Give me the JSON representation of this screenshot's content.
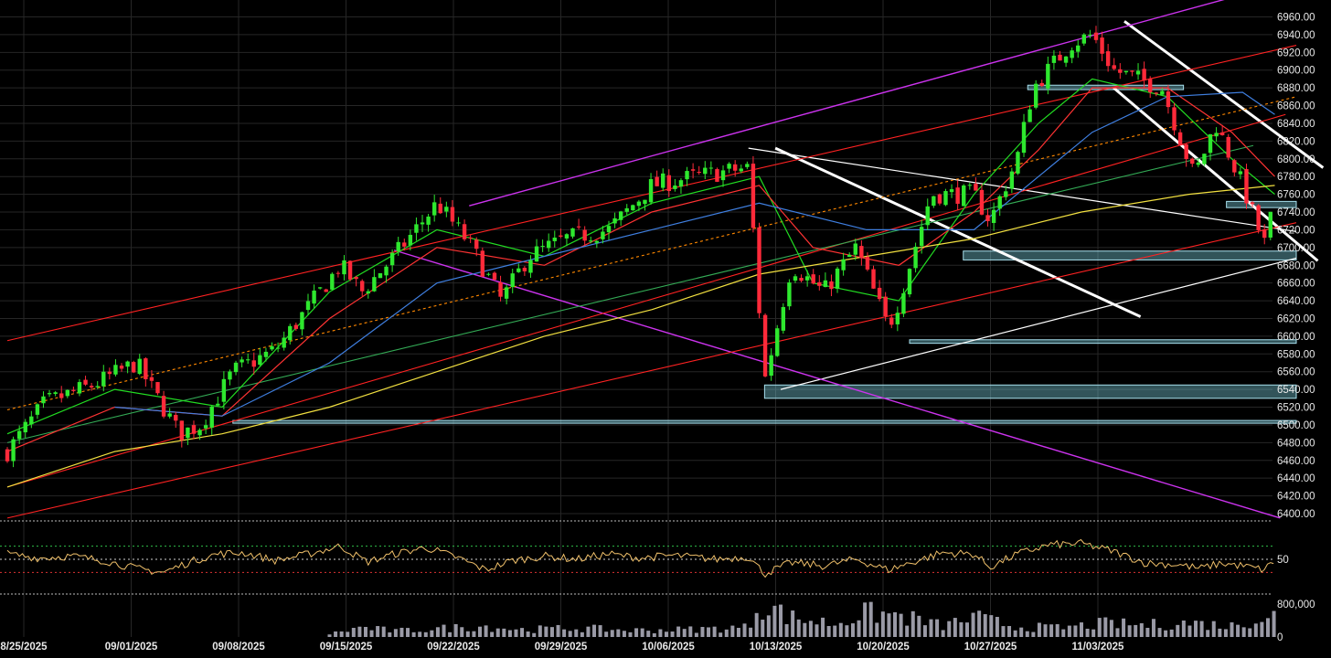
{
  "chart_data": [
    {
      "type": "candlestick",
      "panel": "price",
      "title": "",
      "xlabel": "",
      "ylabel": "",
      "ylim": [
        6390,
        6980
      ],
      "y_ticks": [
        "6400.00",
        "6420.00",
        "6440.00",
        "6460.00",
        "6480.00",
        "6500.00",
        "6520.00",
        "6540.00",
        "6560.00",
        "6580.00",
        "6600.00",
        "6620.00",
        "6640.00",
        "6660.00",
        "6680.00",
        "6700.00",
        "6720.00",
        "6740.00",
        "6760.00",
        "6780.00",
        "6800.00",
        "6820.00",
        "6840.00",
        "6860.00",
        "6880.00",
        "6900.00",
        "6920.00",
        "6940.00",
        "6960.00"
      ],
      "x_ticks": [
        "8/25/2025",
        "09/01/2025",
        "09/08/2025",
        "09/15/2025",
        "09/22/2025",
        "09/29/2025",
        "10/06/2025",
        "10/13/2025",
        "10/20/2025",
        "10/27/2025",
        "11/03/2025"
      ],
      "grid": true,
      "colors": {
        "up": "#2ee82e",
        "down": "#ff2a3a",
        "background": "#000000",
        "grid": "#262626"
      },
      "close_path": [
        {
          "x": 0,
          "y": 6470
        },
        {
          "x": 0.35,
          "y": 6525
        },
        {
          "x": 0.8,
          "y": 6545
        },
        {
          "x": 1.2,
          "y": 6570
        },
        {
          "x": 1.45,
          "y": 6520
        },
        {
          "x": 1.6,
          "y": 6490
        },
        {
          "x": 1.8,
          "y": 6500
        },
        {
          "x": 2.1,
          "y": 6560
        },
        {
          "x": 2.5,
          "y": 6585
        },
        {
          "x": 3.1,
          "y": 6680
        },
        {
          "x": 3.3,
          "y": 6650
        },
        {
          "x": 3.6,
          "y": 6690
        },
        {
          "x": 4.0,
          "y": 6750
        },
        {
          "x": 4.3,
          "y": 6705
        },
        {
          "x": 4.6,
          "y": 6640
        },
        {
          "x": 4.85,
          "y": 6690
        },
        {
          "x": 5.2,
          "y": 6710
        },
        {
          "x": 5.6,
          "y": 6720
        },
        {
          "x": 6.0,
          "y": 6770
        },
        {
          "x": 6.4,
          "y": 6780
        },
        {
          "x": 6.9,
          "y": 6790
        },
        {
          "x": 7.05,
          "y": 6550
        },
        {
          "x": 7.3,
          "y": 6680
        },
        {
          "x": 7.6,
          "y": 6650
        },
        {
          "x": 7.9,
          "y": 6700
        },
        {
          "x": 8.2,
          "y": 6610
        },
        {
          "x": 8.3,
          "y": 6640
        },
        {
          "x": 8.6,
          "y": 6760
        },
        {
          "x": 9.0,
          "y": 6760
        },
        {
          "x": 9.15,
          "y": 6730
        },
        {
          "x": 9.4,
          "y": 6800
        },
        {
          "x": 9.55,
          "y": 6880
        },
        {
          "x": 9.9,
          "y": 6930
        },
        {
          "x": 10.1,
          "y": 6940
        },
        {
          "x": 10.3,
          "y": 6900
        },
        {
          "x": 10.75,
          "y": 6880
        },
        {
          "x": 11.05,
          "y": 6780
        },
        {
          "x": 11.25,
          "y": 6840
        },
        {
          "x": 11.5,
          "y": 6770
        },
        {
          "x": 11.65,
          "y": 6720
        },
        {
          "x": 11.72,
          "y": 6700
        },
        {
          "x": 11.8,
          "y": 6765
        }
      ],
      "moving_averages": [
        {
          "color": "#22dd22",
          "values": [
            {
              "x": 0,
              "y": 6490
            },
            {
              "x": 1,
              "y": 6540
            },
            {
              "x": 2,
              "y": 6520
            },
            {
              "x": 3,
              "y": 6650
            },
            {
              "x": 4,
              "y": 6720
            },
            {
              "x": 5,
              "y": 6690
            },
            {
              "x": 6,
              "y": 6750
            },
            {
              "x": 7,
              "y": 6780
            },
            {
              "x": 7.5,
              "y": 6660
            },
            {
              "x": 8.3,
              "y": 6640
            },
            {
              "x": 9,
              "y": 6760
            },
            {
              "x": 9.6,
              "y": 6840
            },
            {
              "x": 10.1,
              "y": 6890
            },
            {
              "x": 10.8,
              "y": 6870
            },
            {
              "x": 11.4,
              "y": 6800
            },
            {
              "x": 11.8,
              "y": 6760
            }
          ]
        },
        {
          "color": "#ff3333",
          "values": [
            {
              "x": 0,
              "y": 6470
            },
            {
              "x": 1,
              "y": 6520
            },
            {
              "x": 2,
              "y": 6510
            },
            {
              "x": 3,
              "y": 6620
            },
            {
              "x": 4,
              "y": 6700
            },
            {
              "x": 5,
              "y": 6680
            },
            {
              "x": 6,
              "y": 6740
            },
            {
              "x": 7,
              "y": 6770
            },
            {
              "x": 7.5,
              "y": 6700
            },
            {
              "x": 8.3,
              "y": 6680
            },
            {
              "x": 9,
              "y": 6740
            },
            {
              "x": 9.6,
              "y": 6810
            },
            {
              "x": 10.1,
              "y": 6880
            },
            {
              "x": 10.8,
              "y": 6880
            },
            {
              "x": 11.4,
              "y": 6830
            },
            {
              "x": 11.8,
              "y": 6780
            }
          ]
        },
        {
          "color": "#3f7fe0",
          "values": [
            {
              "x": 1,
              "y": 6520
            },
            {
              "x": 2,
              "y": 6510
            },
            {
              "x": 3,
              "y": 6570
            },
            {
              "x": 4,
              "y": 6660
            },
            {
              "x": 5,
              "y": 6690
            },
            {
              "x": 6,
              "y": 6720
            },
            {
              "x": 7,
              "y": 6750
            },
            {
              "x": 8,
              "y": 6720
            },
            {
              "x": 9,
              "y": 6720
            },
            {
              "x": 9.6,
              "y": 6780
            },
            {
              "x": 10.1,
              "y": 6830
            },
            {
              "x": 10.8,
              "y": 6870
            },
            {
              "x": 11.5,
              "y": 6875
            },
            {
              "x": 11.8,
              "y": 6850
            }
          ]
        },
        {
          "color": "#f2e040",
          "values": [
            {
              "x": 0,
              "y": 6430
            },
            {
              "x": 1,
              "y": 6470
            },
            {
              "x": 2,
              "y": 6490
            },
            {
              "x": 3,
              "y": 6520
            },
            {
              "x": 4,
              "y": 6560
            },
            {
              "x": 5,
              "y": 6600
            },
            {
              "x": 6,
              "y": 6630
            },
            {
              "x": 7,
              "y": 6670
            },
            {
              "x": 8,
              "y": 6690
            },
            {
              "x": 9,
              "y": 6710
            },
            {
              "x": 10,
              "y": 6740
            },
            {
              "x": 11,
              "y": 6760
            },
            {
              "x": 11.8,
              "y": 6770
            }
          ]
        }
      ],
      "zones": [
        {
          "x1": 7.05,
          "x2": 12.0,
          "y1": 6530,
          "y2": 6545
        },
        {
          "x1": 2.1,
          "x2": 12.0,
          "y1": 6502,
          "y2": 6505
        },
        {
          "x1": 8.4,
          "x2": 12.0,
          "y1": 6592,
          "y2": 6596
        },
        {
          "x1": 8.9,
          "x2": 12.0,
          "y1": 6686,
          "y2": 6696
        },
        {
          "x1": 11.35,
          "x2": 12.0,
          "y1": 6745,
          "y2": 6752
        },
        {
          "x1": 9.5,
          "x2": 10.95,
          "y1": 6878,
          "y2": 6883
        }
      ],
      "trendlines": [
        {
          "color": "#ffffff",
          "width": 3,
          "x1": 7.15,
          "y1": 6812,
          "x2": 10.55,
          "y2": 6622
        },
        {
          "color": "#ffffff",
          "width": 1.2,
          "x1": 6.9,
          "y1": 6812,
          "x2": 12.0,
          "y2": 6718
        },
        {
          "color": "#ffffff",
          "width": 1.2,
          "x1": 7.2,
          "y1": 6540,
          "x2": 12.0,
          "y2": 6688
        },
        {
          "color": "#ffffff",
          "width": 3,
          "x1": 10.4,
          "y1": 6955,
          "x2": 12.25,
          "y2": 6790
        },
        {
          "color": "#ffffff",
          "width": 3,
          "x1": 10.3,
          "y1": 6880,
          "x2": 12.2,
          "y2": 6685
        },
        {
          "color": "#cc33ee",
          "width": 1.4,
          "x1": 4.3,
          "y1": 6747,
          "x2": 11.4,
          "y2": 6982
        },
        {
          "color": "#cc33ee",
          "width": 1.4,
          "x1": 3.6,
          "y1": 6697,
          "x2": 11.85,
          "y2": 6395
        },
        {
          "color": "#ff2222",
          "width": 1.1,
          "x1": 0,
          "y1": 6595,
          "x2": 12.0,
          "y2": 6928
        },
        {
          "color": "#ff2222",
          "width": 1.1,
          "x1": 0,
          "y1": 6395,
          "x2": 12.0,
          "y2": 6728
        },
        {
          "color": "#ff2222",
          "width": 1.1,
          "x1": 0,
          "y1": 6430,
          "x2": 11.9,
          "y2": 6850
        },
        {
          "color": "#ff8800",
          "width": 1.1,
          "dash": true,
          "x1": 0,
          "y1": 6517,
          "x2": 12.0,
          "y2": 6870
        },
        {
          "color": "#33aa55",
          "width": 1.1,
          "x1": 0,
          "y1": 6480,
          "x2": 11.6,
          "y2": 6815
        }
      ]
    },
    {
      "type": "line",
      "panel": "oscillator",
      "ylim": [
        0,
        100
      ],
      "y_ticks": [
        "50"
      ],
      "levels": [
        70,
        50,
        30
      ],
      "color": "#f0c06a",
      "values": [
        {
          "x": 0,
          "y": 58
        },
        {
          "x": 0.3,
          "y": 52
        },
        {
          "x": 0.6,
          "y": 55
        },
        {
          "x": 0.9,
          "y": 48
        },
        {
          "x": 1.2,
          "y": 36
        },
        {
          "x": 1.45,
          "y": 30
        },
        {
          "x": 1.7,
          "y": 46
        },
        {
          "x": 1.95,
          "y": 58
        },
        {
          "x": 2.2,
          "y": 60
        },
        {
          "x": 2.5,
          "y": 48
        },
        {
          "x": 2.8,
          "y": 58
        },
        {
          "x": 3.1,
          "y": 70
        },
        {
          "x": 3.35,
          "y": 46
        },
        {
          "x": 3.6,
          "y": 58
        },
        {
          "x": 3.9,
          "y": 68
        },
        {
          "x": 4.2,
          "y": 52
        },
        {
          "x": 4.45,
          "y": 34
        },
        {
          "x": 4.7,
          "y": 48
        },
        {
          "x": 5.0,
          "y": 55
        },
        {
          "x": 5.3,
          "y": 50
        },
        {
          "x": 5.6,
          "y": 58
        },
        {
          "x": 5.9,
          "y": 52
        },
        {
          "x": 6.2,
          "y": 56
        },
        {
          "x": 6.6,
          "y": 50
        },
        {
          "x": 6.9,
          "y": 54
        },
        {
          "x": 7.05,
          "y": 28
        },
        {
          "x": 7.3,
          "y": 45
        },
        {
          "x": 7.6,
          "y": 40
        },
        {
          "x": 7.9,
          "y": 50
        },
        {
          "x": 8.2,
          "y": 34
        },
        {
          "x": 8.4,
          "y": 44
        },
        {
          "x": 8.7,
          "y": 60
        },
        {
          "x": 9.0,
          "y": 58
        },
        {
          "x": 9.15,
          "y": 38
        },
        {
          "x": 9.4,
          "y": 58
        },
        {
          "x": 9.7,
          "y": 72
        },
        {
          "x": 10.0,
          "y": 74
        },
        {
          "x": 10.3,
          "y": 62
        },
        {
          "x": 10.6,
          "y": 44
        },
        {
          "x": 10.9,
          "y": 42
        },
        {
          "x": 11.1,
          "y": 36
        },
        {
          "x": 11.3,
          "y": 44
        },
        {
          "x": 11.5,
          "y": 40
        },
        {
          "x": 11.7,
          "y": 34
        },
        {
          "x": 11.8,
          "y": 48
        }
      ]
    },
    {
      "type": "bar",
      "panel": "volume",
      "ylim": [
        0,
        1000000
      ],
      "y_ticks": [
        "800,000",
        "0"
      ],
      "color": "#9a9aa6",
      "values": [
        {
          "x": 3.0,
          "y": 80000
        },
        {
          "x": 3.3,
          "y": 260000
        },
        {
          "x": 3.6,
          "y": 160000
        },
        {
          "x": 4.0,
          "y": 220000
        },
        {
          "x": 4.4,
          "y": 300000
        },
        {
          "x": 4.8,
          "y": 200000
        },
        {
          "x": 5.3,
          "y": 240000
        },
        {
          "x": 5.8,
          "y": 180000
        },
        {
          "x": 6.3,
          "y": 200000
        },
        {
          "x": 6.9,
          "y": 260000
        },
        {
          "x": 7.0,
          "y": 950000
        },
        {
          "x": 7.3,
          "y": 520000
        },
        {
          "x": 7.7,
          "y": 360000
        },
        {
          "x": 8.0,
          "y": 650000
        },
        {
          "x": 8.3,
          "y": 580000
        },
        {
          "x": 8.7,
          "y": 300000
        },
        {
          "x": 9.0,
          "y": 520000
        },
        {
          "x": 9.4,
          "y": 280000
        },
        {
          "x": 9.8,
          "y": 240000
        },
        {
          "x": 10.2,
          "y": 360000
        },
        {
          "x": 10.6,
          "y": 320000
        },
        {
          "x": 11.0,
          "y": 380000
        },
        {
          "x": 11.4,
          "y": 300000
        },
        {
          "x": 11.7,
          "y": 560000
        },
        {
          "x": 11.8,
          "y": 600000
        }
      ]
    }
  ]
}
